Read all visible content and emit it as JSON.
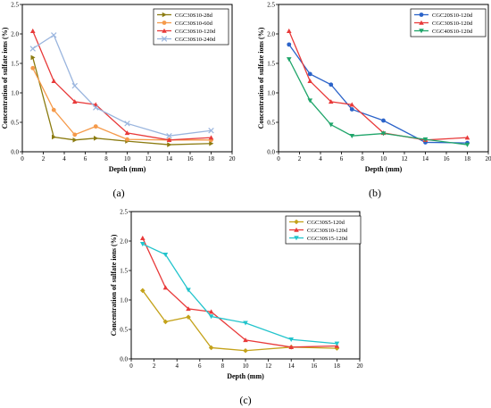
{
  "chart_data": [
    {
      "type": "line",
      "panel_label": "(a)",
      "xlabel": "Depth (mm)",
      "ylabel": "Concentration of sulfate ions (%)",
      "xlim": [
        0,
        20
      ],
      "ylim": [
        0,
        2.5
      ],
      "xticks": [
        "0",
        "2",
        "4",
        "6",
        "8",
        "10",
        "12",
        "14",
        "16",
        "18",
        "20"
      ],
      "yticks": [
        "0.0",
        "0.5",
        "1.0",
        "1.5",
        "2.0",
        "2.5"
      ],
      "legend_position": "top-right",
      "series": [
        {
          "name": "CGC30S10-28d",
          "color": "#8B7B10",
          "marker": "triangle-right",
          "x": [
            1,
            3,
            5,
            7,
            10,
            14,
            18
          ],
          "y": [
            1.6,
            0.25,
            0.2,
            0.23,
            0.18,
            0.12,
            0.14
          ]
        },
        {
          "name": "CGC30S10-60d",
          "color": "#F59A4A",
          "marker": "circle",
          "x": [
            1,
            3,
            5,
            7,
            10,
            14,
            18
          ],
          "y": [
            1.42,
            0.71,
            0.29,
            0.43,
            0.21,
            0.2,
            0.2
          ]
        },
        {
          "name": "CGC30S10-120d",
          "color": "#E83A3A",
          "marker": "triangle-up",
          "x": [
            1,
            3,
            5,
            7,
            10,
            14,
            18
          ],
          "y": [
            2.05,
            1.2,
            0.85,
            0.8,
            0.32,
            0.2,
            0.24
          ]
        },
        {
          "name": "CGC30S10-240d",
          "color": "#9AB5DE",
          "marker": "x",
          "x": [
            1,
            3,
            5,
            7,
            10,
            14,
            18
          ],
          "y": [
            1.75,
            1.98,
            1.12,
            0.75,
            0.48,
            0.27,
            0.36
          ]
        }
      ]
    },
    {
      "type": "line",
      "panel_label": "(b)",
      "xlabel": "Depth (mm)",
      "ylabel": "Concentration of sulfate ions (%)",
      "xlim": [
        0,
        20
      ],
      "ylim": [
        0,
        2.5
      ],
      "xticks": [
        "0",
        "2",
        "4",
        "6",
        "8",
        "10",
        "12",
        "14",
        "16",
        "18",
        "20"
      ],
      "yticks": [
        "0.0",
        "0.5",
        "1.0",
        "1.5",
        "2.0",
        "2.5"
      ],
      "legend_position": "top-right",
      "series": [
        {
          "name": "CGC20S10-120d",
          "color": "#2B63C9",
          "marker": "circle",
          "x": [
            1,
            3,
            5,
            7,
            10,
            14,
            18
          ],
          "y": [
            1.82,
            1.32,
            1.14,
            0.72,
            0.53,
            0.16,
            0.15
          ]
        },
        {
          "name": "CGC30S10-120d",
          "color": "#E83A3A",
          "marker": "triangle-up",
          "x": [
            1,
            3,
            5,
            7,
            10,
            14,
            18
          ],
          "y": [
            2.05,
            1.2,
            0.85,
            0.8,
            0.32,
            0.2,
            0.24
          ]
        },
        {
          "name": "CGC40S10-120d",
          "color": "#1FA56A",
          "marker": "triangle-down",
          "x": [
            1,
            3,
            5,
            7,
            10,
            14,
            18
          ],
          "y": [
            1.57,
            0.87,
            0.46,
            0.27,
            0.31,
            0.21,
            0.12
          ]
        }
      ]
    },
    {
      "type": "line",
      "panel_label": "(c)",
      "xlabel": "Depth (mm)",
      "ylabel": "Concentration of sulfate ions (%)",
      "xlim": [
        0,
        20
      ],
      "ylim": [
        0,
        2.5
      ],
      "xticks": [
        "0",
        "2",
        "4",
        "6",
        "8",
        "10",
        "12",
        "14",
        "16",
        "18",
        "20"
      ],
      "yticks": [
        "0.0",
        "0.5",
        "1.0",
        "1.5",
        "2.0",
        "2.5"
      ],
      "legend_position": "top-right",
      "series": [
        {
          "name": "CGC30S5-120d",
          "color": "#C4A21A",
          "marker": "diamond",
          "x": [
            1,
            3,
            5,
            7,
            10,
            14,
            18
          ],
          "y": [
            1.16,
            0.63,
            0.71,
            0.19,
            0.14,
            0.2,
            0.18
          ]
        },
        {
          "name": "CGC30S10-120d",
          "color": "#E83A3A",
          "marker": "triangle-up",
          "x": [
            1,
            3,
            5,
            7,
            10,
            14,
            18
          ],
          "y": [
            2.05,
            1.21,
            0.85,
            0.8,
            0.32,
            0.2,
            0.22
          ]
        },
        {
          "name": "CGC30S15-120d",
          "color": "#22C4CC",
          "marker": "triangle-down",
          "x": [
            1,
            3,
            5,
            7,
            10,
            14,
            18
          ],
          "y": [
            1.95,
            1.77,
            1.17,
            0.72,
            0.61,
            0.33,
            0.26
          ]
        }
      ]
    }
  ]
}
